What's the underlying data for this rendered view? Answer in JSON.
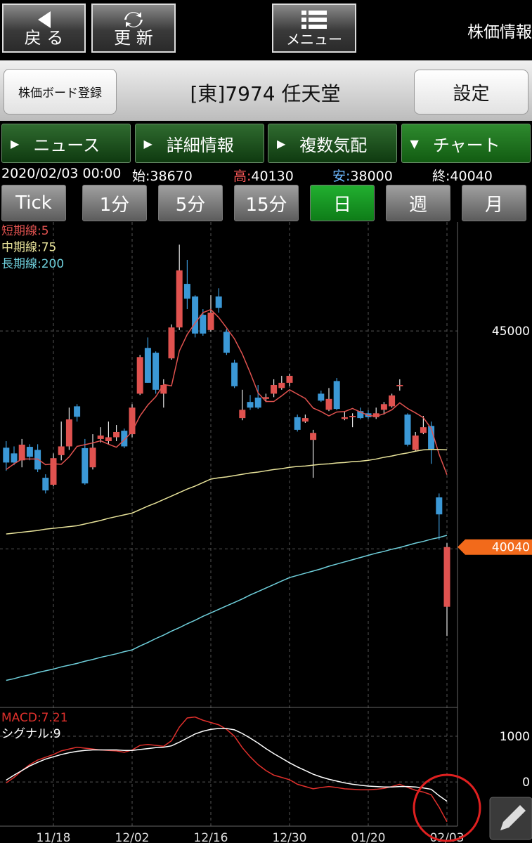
{
  "header": {
    "back": "戻 る",
    "refresh": "更 新",
    "menu": "メニュー",
    "title": "株価情報"
  },
  "board": {
    "register": "株価ボード登録",
    "stock": "[東]7974 任天堂",
    "settings": "設定"
  },
  "tabs": [
    "ニュース",
    "詳細情報",
    "複数気配",
    "チャート"
  ],
  "quote": {
    "datetime": "2020/02/03 00:00",
    "items": [
      {
        "label": "始:",
        "value": "38670"
      },
      {
        "label": "高:",
        "value": "40130"
      },
      {
        "label": "安:",
        "value": "38000"
      },
      {
        "label": "終:",
        "value": "40040"
      }
    ]
  },
  "periods": [
    "Tick",
    "1分",
    "5分",
    "15分",
    "日",
    "週",
    "月"
  ],
  "chart": {
    "type": "candlestick",
    "categories": [
      null,
      null,
      null,
      null,
      null,
      null,
      "11/18",
      null,
      null,
      null,
      null,
      null,
      null,
      null,
      null,
      null,
      "12/02",
      null,
      null,
      null,
      null,
      null,
      null,
      null,
      null,
      null,
      "12/16",
      null,
      null,
      null,
      null,
      null,
      null,
      null,
      null,
      null,
      "12/30",
      null,
      null,
      null,
      null,
      null,
      null,
      null,
      null,
      null,
      "01/20",
      null,
      null,
      null,
      null,
      null,
      null,
      null,
      null,
      null,
      "02/03"
    ],
    "colors": {
      "up": "#e0524f",
      "down": "#3b98d6"
    },
    "candles": {
      "open": [
        42320,
        42190,
        42030,
        42340,
        42270,
        41630,
        41470,
        42150,
        42350,
        43270,
        42310,
        41870,
        42520,
        42470,
        42560,
        42710,
        42630,
        43560,
        44610,
        44500,
        43560,
        44370,
        45080,
        46080,
        45790,
        45370,
        45020,
        45790,
        44980,
        44270,
        43000,
        43370,
        43470,
        43440,
        43560,
        43690,
        43810,
        43020,
        42920,
        42500,
        43560,
        43190,
        43850,
        42980,
        43020,
        43160,
        43110,
        43020,
        43190,
        43270,
        43730,
        43080,
        42270,
        42660,
        42820,
        41180,
        38670
      ],
      "high": [
        42470,
        42350,
        42520,
        42400,
        42400,
        41710,
        42190,
        42920,
        43240,
        43320,
        42520,
        42630,
        42790,
        42920,
        42840,
        42760,
        43320,
        44450,
        44850,
        44530,
        43890,
        45150,
        46980,
        46630,
        45820,
        45500,
        45820,
        45980,
        45050,
        44340,
        43650,
        43530,
        43760,
        43560,
        43890,
        43970,
        44020,
        43080,
        43080,
        42730,
        43630,
        43690,
        43920,
        43160,
        43110,
        43240,
        43180,
        43240,
        43370,
        43560,
        43890,
        43110,
        42680,
        43050,
        42920,
        41270,
        40130
      ],
      "low": [
        41790,
        41920,
        41870,
        42030,
        41760,
        41270,
        41440,
        42030,
        42270,
        42920,
        41470,
        41820,
        42440,
        42400,
        42470,
        42310,
        42560,
        43530,
        43810,
        43560,
        43240,
        44340,
        45020,
        45500,
        44850,
        44890,
        44980,
        45420,
        44450,
        43690,
        42950,
        43190,
        43210,
        43370,
        43480,
        43650,
        43730,
        42690,
        42890,
        41630,
        43370,
        43160,
        43180,
        42950,
        42790,
        42970,
        42980,
        42980,
        43080,
        43240,
        43630,
        42350,
        42240,
        42630,
        41950,
        40210,
        38000
      ],
      "close": [
        41980,
        41980,
        42390,
        42110,
        41820,
        41340,
        42080,
        42350,
        42970,
        43030,
        41500,
        42320,
        42600,
        42560,
        42680,
        42350,
        43240,
        44400,
        43810,
        43650,
        43760,
        45080,
        46390,
        45740,
        44940,
        44940,
        45420,
        45530,
        44500,
        43730,
        43190,
        43240,
        43240,
        43480,
        43760,
        43810,
        43970,
        42730,
        43000,
        42660,
        43400,
        43440,
        43210,
        43020,
        43050,
        43000,
        43020,
        43110,
        43320,
        43520,
        43760,
        42390,
        42600,
        42790,
        42270,
        40790,
        40040
      ]
    },
    "ma": [
      {
        "name": "短期線:5",
        "color": "#e0524f",
        "values": [
          41820,
          41950,
          42060,
          42060,
          42060,
          41930,
          41950,
          41940,
          42110,
          42350,
          42390,
          42430,
          42480,
          42400,
          42330,
          42500,
          42690,
          43050,
          43300,
          43490,
          43770,
          43740,
          44540,
          44920,
          45180,
          45420,
          45490,
          45310,
          45070,
          44820,
          44470,
          44040,
          43580,
          43380,
          43380,
          43510,
          43650,
          43550,
          43450,
          43230,
          43150,
          43050,
          43140,
          43150,
          43220,
          43140,
          43060,
          43040,
          43100,
          43190,
          43350,
          43220,
          43120,
          43010,
          42760,
          42170,
          41700
        ]
      },
      {
        "name": "中期線:75",
        "color": "#e8e39a",
        "values": [
          40340,
          40360,
          40380,
          40400,
          40420,
          40450,
          40470,
          40490,
          40510,
          40530,
          40570,
          40610,
          40650,
          40700,
          40740,
          40780,
          40820,
          40900,
          40980,
          41050,
          41130,
          41210,
          41290,
          41370,
          41440,
          41520,
          41600,
          41630,
          41650,
          41680,
          41710,
          41740,
          41760,
          41790,
          41820,
          41840,
          41870,
          41890,
          41900,
          41920,
          41940,
          41950,
          41970,
          41980,
          42000,
          42010,
          42030,
          42060,
          42100,
          42130,
          42170,
          42200,
          42240,
          42270,
          42280,
          42280,
          42270
        ]
      },
      {
        "name": "長期線:200",
        "color": "#6fd0dc",
        "values": [
          36980,
          37020,
          37070,
          37110,
          37160,
          37200,
          37240,
          37290,
          37330,
          37370,
          37420,
          37460,
          37510,
          37550,
          37590,
          37640,
          37680,
          37770,
          37850,
          37940,
          38020,
          38110,
          38190,
          38280,
          38360,
          38450,
          38530,
          38610,
          38690,
          38770,
          38850,
          38940,
          39020,
          39100,
          39180,
          39260,
          39340,
          39390,
          39440,
          39490,
          39540,
          39600,
          39650,
          39700,
          39750,
          39800,
          39850,
          39900,
          39940,
          39990,
          40030,
          40080,
          40130,
          40170,
          40220,
          40260,
          40310
        ]
      }
    ],
    "ylim": [
      36360,
      47500
    ],
    "yticks": [
      40000,
      45000
    ],
    "current_price": 40040,
    "macd": {
      "ylim": [
        -950,
        1630
      ],
      "yticks": [
        0,
        1000
      ],
      "series": [
        {
          "name": "MACD:7.21",
          "color": "#e0302c",
          "values": [
            -20,
            100,
            250,
            380,
            480,
            540,
            600,
            680,
            720,
            760,
            740,
            720,
            700,
            690,
            680,
            650,
            700,
            800,
            820,
            800,
            780,
            900,
            1200,
            1400,
            1420,
            1350,
            1300,
            1250,
            1150,
            1000,
            750,
            550,
            380,
            250,
            150,
            100,
            50,
            -50,
            -100,
            -150,
            -120,
            -100,
            -120,
            -150,
            -160,
            -170,
            -170,
            -160,
            -140,
            -100,
            -50,
            -120,
            -180,
            -220,
            -280,
            -550,
            -870
          ]
        },
        {
          "name": "シグナル:9",
          "color": "#ffffff",
          "values": [
            40,
            150,
            250,
            350,
            430,
            500,
            550,
            600,
            640,
            670,
            690,
            700,
            700,
            700,
            700,
            690,
            690,
            710,
            730,
            750,
            760,
            790,
            870,
            960,
            1050,
            1110,
            1150,
            1170,
            1170,
            1140,
            1060,
            960,
            850,
            730,
            620,
            520,
            420,
            330,
            250,
            170,
            110,
            60,
            20,
            -20,
            -50,
            -70,
            -90,
            -100,
            -110,
            -110,
            -100,
            -100,
            -110,
            -130,
            -160,
            -300,
            -420
          ]
        }
      ]
    }
  }
}
